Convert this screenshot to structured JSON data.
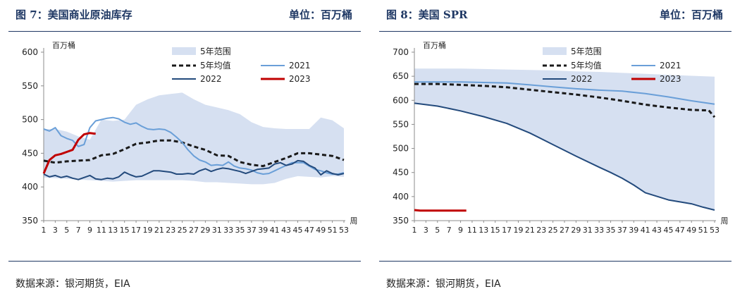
{
  "panels": [
    {
      "title": "图 7：美国商业原油库存",
      "unit": "单位：百万桶",
      "source": "数据来源：银河期货，EIA"
    },
    {
      "title": "图 8：美国 SPR",
      "unit": "单位：百万桶",
      "source": "数据来源：银河期货，EIA"
    }
  ],
  "colors": {
    "band": "#d6e0f1",
    "avg": "#1a1a1a",
    "s2021": "#6a9fd8",
    "s2022": "#234a7c",
    "s2023": "#c00000",
    "title": "#1f3864"
  },
  "chart_data": [
    {
      "type": "line",
      "ylabel": "百万桶",
      "xlabel": "周",
      "ylim": [
        350,
        600
      ],
      "yticks": [
        350,
        400,
        450,
        500,
        550,
        600
      ],
      "xticks": [
        1,
        3,
        5,
        7,
        9,
        11,
        13,
        15,
        17,
        19,
        21,
        23,
        25,
        27,
        29,
        31,
        33,
        35,
        37,
        39,
        41,
        43,
        45,
        47,
        49,
        51,
        53
      ],
      "legend_position": "top-right",
      "band": {
        "name": "5年范围",
        "x": [
          1,
          3,
          5,
          7,
          9,
          11,
          13,
          15,
          17,
          19,
          21,
          23,
          25,
          27,
          29,
          31,
          33,
          35,
          37,
          39,
          41,
          43,
          45,
          47,
          49,
          51,
          53
        ],
        "upper": [
          486,
          486,
          482,
          475,
          470,
          500,
          498,
          500,
          522,
          530,
          536,
          538,
          540,
          530,
          522,
          518,
          514,
          508,
          496,
          489,
          487,
          486,
          486,
          486,
          503,
          499,
          487
        ],
        "lower": [
          414,
          413,
          412,
          411,
          410,
          409,
          408,
          409,
          410,
          410,
          410,
          410,
          410,
          409,
          407,
          407,
          406,
          405,
          404,
          404,
          406,
          412,
          416,
          415,
          414,
          416,
          415
        ]
      },
      "series": [
        {
          "name": "5年均值",
          "style": "dashed",
          "x": [
            1,
            3,
            5,
            7,
            9,
            11,
            13,
            15,
            17,
            19,
            21,
            23,
            25,
            27,
            29,
            31,
            33,
            35,
            37,
            39,
            41,
            43,
            45,
            47,
            49,
            51,
            53
          ],
          "y": [
            439,
            436,
            438,
            439,
            440,
            447,
            449,
            456,
            464,
            466,
            469,
            469,
            466,
            460,
            455,
            447,
            446,
            437,
            433,
            431,
            437,
            443,
            450,
            450,
            448,
            446,
            440
          ]
        },
        {
          "name": "2021",
          "style": "solid",
          "x": [
            1,
            2,
            3,
            4,
            5,
            6,
            7,
            8,
            9,
            10,
            11,
            12,
            13,
            14,
            15,
            16,
            17,
            18,
            19,
            20,
            21,
            22,
            23,
            24,
            25,
            26,
            27,
            28,
            29,
            30,
            31,
            32,
            33,
            34,
            35,
            36,
            37,
            38,
            39,
            40,
            41,
            42,
            43,
            44,
            45,
            46,
            47,
            48,
            49,
            50,
            51,
            52,
            53
          ],
          "y": [
            486,
            483,
            488,
            476,
            472,
            469,
            460,
            463,
            488,
            498,
            500,
            502,
            503,
            501,
            496,
            493,
            495,
            490,
            486,
            485,
            486,
            485,
            481,
            474,
            466,
            455,
            446,
            440,
            437,
            432,
            433,
            432,
            437,
            431,
            428,
            427,
            425,
            421,
            419,
            420,
            424,
            428,
            432,
            436,
            436,
            436,
            431,
            426,
            424,
            421,
            419,
            419,
            421
          ]
        },
        {
          "name": "2022",
          "style": "solid",
          "x": [
            1,
            2,
            3,
            4,
            5,
            6,
            7,
            8,
            9,
            10,
            11,
            12,
            13,
            14,
            15,
            16,
            17,
            18,
            19,
            20,
            21,
            22,
            23,
            24,
            25,
            26,
            27,
            28,
            29,
            30,
            31,
            32,
            33,
            34,
            35,
            36,
            37,
            38,
            39,
            40,
            41,
            42,
            43,
            44,
            45,
            46,
            47,
            48,
            49,
            50,
            51,
            52,
            53
          ],
          "y": [
            419,
            415,
            417,
            414,
            416,
            413,
            411,
            414,
            417,
            412,
            411,
            413,
            412,
            415,
            422,
            418,
            415,
            416,
            420,
            424,
            424,
            423,
            422,
            419,
            419,
            420,
            419,
            424,
            427,
            423,
            426,
            428,
            427,
            425,
            423,
            420,
            423,
            426,
            427,
            428,
            434,
            436,
            432,
            434,
            439,
            438,
            432,
            428,
            418,
            424,
            420,
            418,
            420
          ]
        },
        {
          "name": "2023",
          "style": "solid",
          "x": [
            1,
            2,
            3,
            4,
            5,
            6,
            7,
            8,
            9,
            10
          ],
          "y": [
            420,
            440,
            447,
            449,
            452,
            455,
            470,
            478,
            480,
            479
          ]
        }
      ]
    },
    {
      "type": "line",
      "ylabel": "百万桶",
      "xlabel": "周",
      "ylim": [
        350,
        700
      ],
      "yticks": [
        350,
        400,
        450,
        500,
        550,
        600,
        650,
        700
      ],
      "xticks": [
        1,
        3,
        5,
        7,
        9,
        11,
        13,
        15,
        17,
        19,
        21,
        23,
        25,
        27,
        29,
        31,
        33,
        35,
        37,
        39,
        41,
        43,
        45,
        47,
        49,
        51,
        53
      ],
      "legend_position": "top-right",
      "band": {
        "name": "5年范围",
        "x": [
          1,
          5,
          9,
          13,
          17,
          21,
          25,
          29,
          33,
          37,
          41,
          45,
          49,
          53
        ],
        "upper": [
          666,
          666,
          666,
          665,
          664,
          663,
          662,
          660,
          659,
          657,
          655,
          653,
          651,
          649
        ],
        "lower": [
          594,
          588,
          578,
          566,
          552,
          532,
          508,
          484,
          461,
          438,
          408,
          393,
          385,
          372
        ]
      },
      "series": [
        {
          "name": "5年均值",
          "style": "dashed",
          "x": [
            1,
            5,
            9,
            13,
            17,
            21,
            25,
            29,
            33,
            37,
            41,
            45,
            49,
            52,
            53
          ],
          "y": [
            634,
            634,
            632,
            630,
            627,
            622,
            617,
            612,
            606,
            599,
            591,
            585,
            580,
            579,
            565
          ]
        },
        {
          "name": "2021",
          "style": "solid",
          "x": [
            1,
            5,
            9,
            13,
            17,
            21,
            25,
            29,
            33,
            37,
            41,
            45,
            49,
            53
          ],
          "y": [
            638,
            638,
            638,
            637,
            636,
            632,
            628,
            624,
            621,
            619,
            614,
            607,
            599,
            592
          ]
        },
        {
          "name": "2022",
          "style": "solid",
          "x": [
            1,
            5,
            9,
            13,
            17,
            21,
            25,
            29,
            33,
            35,
            37,
            39,
            41,
            45,
            49,
            51,
            53
          ],
          "y": [
            594,
            588,
            578,
            566,
            552,
            532,
            508,
            484,
            461,
            450,
            438,
            424,
            408,
            393,
            385,
            378,
            372
          ]
        },
        {
          "name": "2023",
          "style": "solid",
          "x": [
            1,
            2,
            3,
            4,
            5,
            6,
            7,
            8,
            9,
            10
          ],
          "y": [
            372,
            371,
            371,
            371,
            371,
            371,
            371,
            371,
            371,
            371
          ]
        }
      ]
    }
  ]
}
